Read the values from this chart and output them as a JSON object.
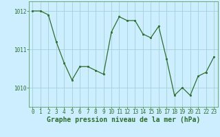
{
  "x": [
    0,
    1,
    2,
    3,
    4,
    5,
    6,
    7,
    8,
    9,
    10,
    11,
    12,
    13,
    14,
    15,
    16,
    17,
    18,
    19,
    20,
    21,
    22,
    23
  ],
  "y": [
    1012.0,
    1012.0,
    1011.9,
    1011.2,
    1010.65,
    1010.2,
    1010.55,
    1010.55,
    1010.45,
    1010.35,
    1011.45,
    1011.85,
    1011.75,
    1011.75,
    1011.4,
    1011.3,
    1011.6,
    1010.75,
    1009.8,
    1010.0,
    1009.8,
    1010.3,
    1010.4,
    1010.8
  ],
  "line_color": "#2d6e2d",
  "marker": "s",
  "marker_size": 2.0,
  "bg_color": "#cceeff",
  "grid_color": "#99cccc",
  "xlabel": "Graphe pression niveau de la mer (hPa)",
  "xlabel_color": "#2d6e2d",
  "xlabel_fontsize": 7.0,
  "tick_color": "#2d6e2d",
  "tick_fontsize": 5.5,
  "ylim": [
    1009.5,
    1012.25
  ],
  "yticks": [
    1010,
    1011,
    1012
  ],
  "xlim": [
    -0.5,
    23.5
  ],
  "xticks": [
    0,
    1,
    2,
    3,
    4,
    5,
    6,
    7,
    8,
    9,
    10,
    11,
    12,
    13,
    14,
    15,
    16,
    17,
    18,
    19,
    20,
    21,
    22,
    23
  ],
  "spine_color": "#5a9a5a",
  "linewidth": 0.9
}
